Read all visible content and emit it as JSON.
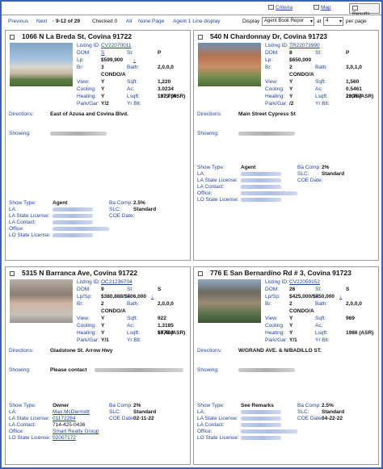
{
  "toolbar": {
    "criteria": "Criteria",
    "map": "Map",
    "results": "Results"
  },
  "nav": {
    "previous": "Previous",
    "next": "Next",
    "range": "9-12 of 29",
    "checked": "Checked 0",
    "all": "All",
    "none": "None",
    "page": "Page",
    "agent_display": "Agent 1 Line display",
    "display_label": "Display",
    "display_value": "Agent Book Repor",
    "at_label": "at",
    "per_page_value": "4",
    "per_page_label": "per page"
  },
  "labels": {
    "listing_id": "Listing ID:",
    "dom": "DOM:",
    "st": "St:",
    "lp": "Lp:",
    "lpsp": "Lp/Sp:",
    "sqft_sign": "$:",
    "br": "Br:",
    "bath": "Bath:",
    "view": "View:",
    "sqft": "Sqft:",
    "cooling": "Cooling:",
    "ac": "Ac:",
    "heating": "Heating:",
    "lsqft": "Lsqft:",
    "park_gar": "Park/Gar:",
    "yr_blt": "Yr Blt:",
    "directions": "Directions:",
    "showing": "Showing:",
    "show_type": "Show Type:",
    "ba_comp": "Ba Comp:",
    "la": "LA:",
    "slc": "SLC:",
    "la_state_license": "LA State License:",
    "coe_date": "COE Date:",
    "la_contact": "LA Contact:",
    "office": "Office:",
    "lo_state_license": "LO State License:"
  },
  "listings": [
    {
      "address": "1066 N La Breda St, Covina 91722",
      "listing_id": "CV22070011",
      "dom": "S",
      "st": "P",
      "price": "$599,900",
      "price_arrow": "↓",
      "br": "3",
      "bath": "2,0,0,0",
      "type": "CONDO/A",
      "view": "Y",
      "sqft": "1,220",
      "cooling": "Y",
      "ac": "3.0234",
      "heating": "Y",
      "lsqft": "131,700",
      "park_gar": "Y/2",
      "yr_blt": "1979 (ASR)",
      "directions": "East of Azusa and Covina Blvd.",
      "showing": "",
      "show_type": "Agent",
      "ba_comp": "2.5%",
      "slc": "Standard",
      "coe_date": "",
      "la": "",
      "la_state_license": "",
      "la_contact": "",
      "office": "",
      "lo_state_license": ""
    },
    {
      "address": "540 N Chardonnay Dr, Covina 91723",
      "listing_id": "TR22073990",
      "dom": "8",
      "st": "P",
      "price": "$650,000",
      "price_arrow": "",
      "br": "2",
      "bath": "3,0,1,0",
      "type": "CONDO/A",
      "view": "Y",
      "sqft": "1,560",
      "cooling": "Y",
      "ac": "0.5461",
      "heating": "Y",
      "lsqft": "23,787",
      "park_gar": "/2",
      "yr_blt": "2006 (ASR)",
      "directions": "Main Street Cypress St",
      "showing": "",
      "show_type": "Agent",
      "ba_comp": "2%",
      "slc": "Standard",
      "coe_date": "",
      "la": "",
      "la_state_license": "",
      "la_contact": "",
      "office": "",
      "lo_state_license": ""
    },
    {
      "address": "5315 N Barranca Ave, Covina 91722",
      "listing_id": "OC21236704",
      "dom": "9",
      "st": "S",
      "price": "$380,888/$406,000",
      "price_arrow": "↕",
      "br": "2",
      "bath": "2,0,0,0",
      "type": "CONDO/A",
      "view": "Y",
      "sqft": "922",
      "cooling": "Y",
      "ac": "1.3185",
      "heating": "Y",
      "lsqft": "57,434",
      "park_gar": "Y/1",
      "yr_blt": "1978 (ASR)",
      "directions": "Gladstone St. Arrow Hwy",
      "showing": "Please contact",
      "show_type": "Owner",
      "ba_comp": "2%",
      "slc": "Standard",
      "coe_date": "02-11-22",
      "la": "Max McDermott",
      "la_state_license": "01172284",
      "la_contact": "714-425-0436",
      "office": "Smart Realty Group",
      "lo_state_license": "02007172"
    },
    {
      "address": "776 E San Bernardino Rd # 3, Covina 91723",
      "listing_id": "CV22059152",
      "dom": "26",
      "st": "S",
      "price": "$425,000/$450,000",
      "price_arrow": "↕",
      "br": "2",
      "bath": "2,0,0,0",
      "type": "CONDO/A",
      "view": "Y",
      "sqft": "969",
      "cooling": "Y",
      "ac": "",
      "heating": "Y",
      "lsqft": "",
      "park_gar": "Y/1",
      "yr_blt": "1986 (ASR)",
      "directions": "W/GRAND AVE. & N/BADILLO ST.",
      "showing": "",
      "show_type": "See Remarks",
      "ba_comp": "2.5%",
      "slc": "Standard",
      "coe_date": "04-22-22",
      "la": "",
      "la_state_license": "",
      "la_contact": "",
      "office": "",
      "lo_state_license": ""
    }
  ]
}
